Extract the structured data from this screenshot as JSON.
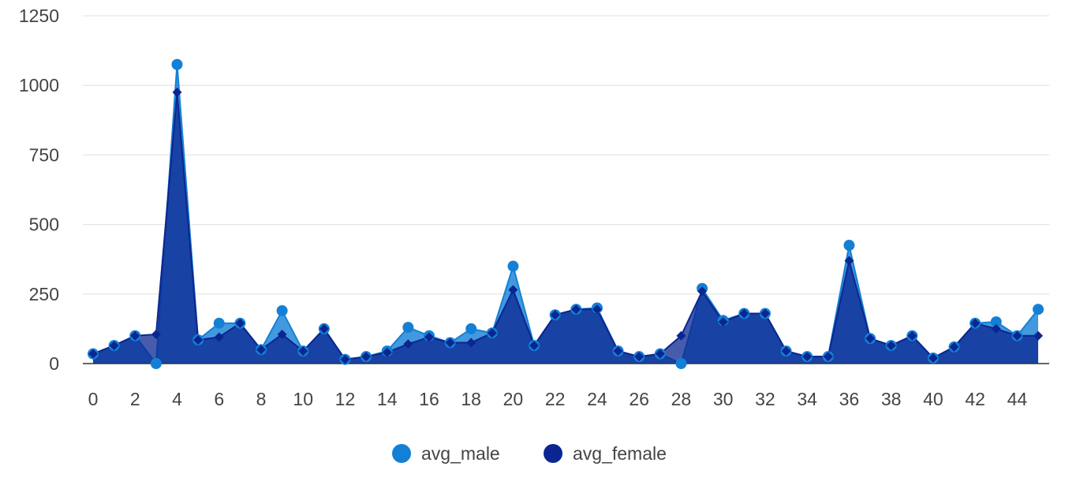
{
  "chart_data": {
    "type": "area",
    "x": [
      0,
      1,
      2,
      3,
      4,
      5,
      6,
      7,
      8,
      9,
      10,
      11,
      12,
      13,
      14,
      15,
      16,
      17,
      18,
      19,
      20,
      21,
      22,
      23,
      24,
      25,
      26,
      27,
      28,
      29,
      30,
      31,
      32,
      33,
      34,
      35,
      36,
      37,
      38,
      39,
      40,
      41,
      42,
      43,
      44,
      45
    ],
    "x_tick_labels": [
      "0",
      "2",
      "4",
      "6",
      "8",
      "10",
      "12",
      "14",
      "16",
      "18",
      "20",
      "22",
      "24",
      "26",
      "28",
      "30",
      "32",
      "34",
      "36",
      "38",
      "40",
      "42",
      "44"
    ],
    "y_tick_labels": [
      "0",
      "250",
      "500",
      "750",
      "1000",
      "1250"
    ],
    "ylim": [
      0,
      1250
    ],
    "xlim": [
      0,
      45
    ],
    "grid": true,
    "legend_position": "bottom",
    "series": [
      {
        "name": "avg_male",
        "color": "#1380d6",
        "marker": "circle",
        "values": [
          35,
          65,
          100,
          0,
          1075,
          85,
          145,
          145,
          50,
          190,
          45,
          125,
          15,
          25,
          45,
          130,
          100,
          75,
          125,
          110,
          350,
          65,
          175,
          195,
          200,
          45,
          25,
          35,
          0,
          270,
          155,
          180,
          180,
          45,
          25,
          25,
          425,
          90,
          65,
          100,
          20,
          60,
          145,
          150,
          100,
          195
        ]
      },
      {
        "name": "avg_female",
        "color": "#0b2690",
        "marker": "diamond",
        "values": [
          35,
          65,
          100,
          105,
          975,
          85,
          95,
          145,
          50,
          105,
          45,
          125,
          15,
          25,
          40,
          70,
          95,
          75,
          75,
          110,
          265,
          65,
          175,
          195,
          195,
          45,
          25,
          35,
          100,
          260,
          150,
          180,
          180,
          45,
          25,
          25,
          370,
          90,
          65,
          100,
          20,
          60,
          145,
          125,
          100,
          100
        ]
      }
    ]
  }
}
